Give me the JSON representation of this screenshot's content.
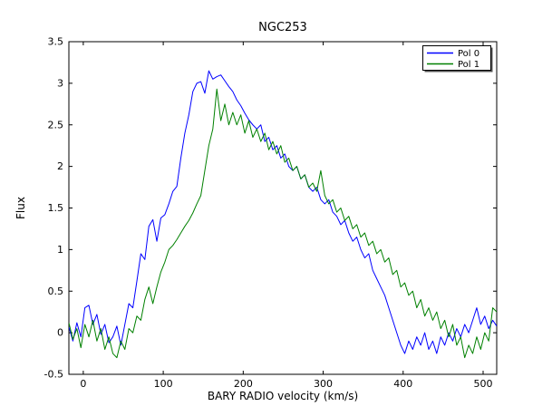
{
  "chart_data": {
    "type": "line",
    "title": "NGC253",
    "xlabel": "BARY RADIO velocity (km/s)",
    "ylabel": "Flux",
    "xlim": [
      -18,
      517
    ],
    "ylim": [
      -0.5,
      3.5
    ],
    "xticks": [
      0,
      100,
      200,
      300,
      400,
      500
    ],
    "yticks": [
      -0.5,
      0,
      0.5,
      1,
      1.5,
      2,
      2.5,
      3,
      3.5
    ],
    "grid": false,
    "background_color": "#ffffff",
    "axes_color": "#000000",
    "legend": {
      "position": "upper right",
      "border_color": "#000000",
      "shadow_color": "#555555",
      "entries": [
        "Pol 0",
        "Pol 1"
      ]
    },
    "x": [
      -18,
      -13,
      -8,
      -3,
      2,
      7,
      12,
      17,
      22,
      27,
      32,
      37,
      42,
      47,
      52,
      57,
      62,
      67,
      72,
      77,
      82,
      87,
      92,
      97,
      102,
      107,
      112,
      117,
      122,
      127,
      132,
      137,
      142,
      147,
      152,
      157,
      162,
      167,
      172,
      177,
      182,
      187,
      192,
      197,
      202,
      207,
      212,
      217,
      222,
      227,
      232,
      237,
      242,
      247,
      252,
      257,
      262,
      267,
      272,
      277,
      282,
      287,
      292,
      297,
      302,
      307,
      312,
      317,
      322,
      327,
      332,
      337,
      342,
      347,
      352,
      357,
      362,
      367,
      372,
      377,
      382,
      387,
      392,
      397,
      402,
      407,
      412,
      417,
      422,
      427,
      432,
      437,
      442,
      447,
      452,
      457,
      462,
      467,
      472,
      477,
      482,
      487,
      492,
      497,
      502,
      507,
      512,
      517
    ],
    "series": [
      {
        "name": "Pol 0",
        "color": "#0000ff",
        "values": [
          0.07,
          -0.1,
          0.12,
          -0.05,
          0.3,
          0.33,
          0.1,
          0.22,
          -0.02,
          0.1,
          -0.12,
          -0.05,
          0.08,
          -0.15,
          0.1,
          0.35,
          0.3,
          0.62,
          0.95,
          0.88,
          1.28,
          1.36,
          1.1,
          1.38,
          1.42,
          1.55,
          1.7,
          1.76,
          2.1,
          2.4,
          2.62,
          2.9,
          3.0,
          3.02,
          2.88,
          3.15,
          3.05,
          3.08,
          3.1,
          3.03,
          2.96,
          2.9,
          2.8,
          2.73,
          2.64,
          2.56,
          2.5,
          2.45,
          2.5,
          2.3,
          2.35,
          2.2,
          2.25,
          2.1,
          2.15,
          2.0,
          1.95,
          2.0,
          1.85,
          1.9,
          1.75,
          1.7,
          1.75,
          1.6,
          1.55,
          1.6,
          1.45,
          1.4,
          1.3,
          1.35,
          1.2,
          1.1,
          1.15,
          1.0,
          0.9,
          0.95,
          0.75,
          0.65,
          0.55,
          0.45,
          0.3,
          0.15,
          0.0,
          -0.15,
          -0.25,
          -0.1,
          -0.2,
          -0.05,
          -0.15,
          0.0,
          -0.2,
          -0.1,
          -0.25,
          -0.05,
          -0.15,
          0.0,
          -0.1,
          0.05,
          -0.05,
          0.1,
          0.0,
          0.15,
          0.3,
          0.1,
          0.2,
          0.05,
          0.15,
          0.08
        ]
      },
      {
        "name": "Pol 1",
        "color": "#008000",
        "values": [
          0.12,
          -0.08,
          0.05,
          -0.18,
          0.1,
          -0.05,
          0.15,
          -0.1,
          0.05,
          -0.2,
          -0.05,
          -0.25,
          -0.3,
          -0.1,
          -0.2,
          0.05,
          0.0,
          0.2,
          0.15,
          0.4,
          0.55,
          0.35,
          0.55,
          0.73,
          0.85,
          1.0,
          1.05,
          1.12,
          1.2,
          1.28,
          1.35,
          1.44,
          1.55,
          1.65,
          1.95,
          2.25,
          2.45,
          2.93,
          2.55,
          2.75,
          2.5,
          2.65,
          2.5,
          2.62,
          2.4,
          2.55,
          2.35,
          2.45,
          2.3,
          2.4,
          2.2,
          2.3,
          2.15,
          2.25,
          2.05,
          2.1,
          1.95,
          2.0,
          1.85,
          1.9,
          1.75,
          1.8,
          1.7,
          1.95,
          1.65,
          1.55,
          1.6,
          1.45,
          1.5,
          1.35,
          1.4,
          1.25,
          1.3,
          1.15,
          1.2,
          1.05,
          1.1,
          0.95,
          1.0,
          0.85,
          0.9,
          0.7,
          0.75,
          0.55,
          0.6,
          0.45,
          0.5,
          0.3,
          0.4,
          0.2,
          0.3,
          0.15,
          0.25,
          0.05,
          0.15,
          -0.05,
          0.1,
          -0.15,
          -0.05,
          -0.3,
          -0.15,
          -0.25,
          -0.05,
          -0.2,
          0.0,
          -0.1,
          0.3,
          0.25
        ]
      }
    ]
  }
}
